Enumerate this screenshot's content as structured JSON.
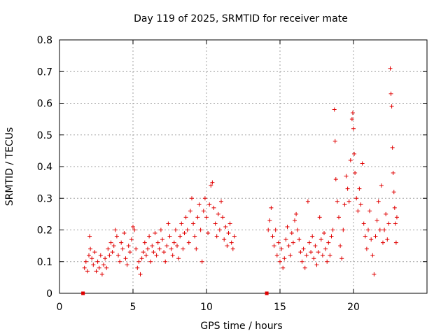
{
  "chart_data": {
    "type": "scatter",
    "title": "Day 119 of 2025, SRMTID for receiver mate",
    "xlabel": "GPS time / hours",
    "ylabel": "SRMTID / TECUs",
    "xlim": [
      0,
      25
    ],
    "ylim": [
      0,
      0.8
    ],
    "xticks": [
      "0",
      "5",
      "10",
      "15",
      "20"
    ],
    "yticks": [
      "0",
      "0.1",
      "0.2",
      "0.3",
      "0.4",
      "0.5",
      "0.6",
      "0.7",
      "0.8"
    ],
    "grid": true,
    "marker": "+",
    "color": "#e00000",
    "zero_markers": [
      {
        "x": 1.6,
        "y": 0
      },
      {
        "x": 14.1,
        "y": 0
      }
    ],
    "series": [
      {
        "name": "SRMTID",
        "points": [
          [
            1.7,
            0.08
          ],
          [
            1.8,
            0.1
          ],
          [
            1.9,
            0.07
          ],
          [
            2.0,
            0.12
          ],
          [
            2.1,
            0.14
          ],
          [
            2.05,
            0.18
          ],
          [
            2.2,
            0.11
          ],
          [
            2.3,
            0.09
          ],
          [
            2.4,
            0.13
          ],
          [
            2.5,
            0.07
          ],
          [
            2.6,
            0.1
          ],
          [
            2.7,
            0.08
          ],
          [
            2.8,
            0.12
          ],
          [
            2.9,
            0.06
          ],
          [
            3.0,
            0.09
          ],
          [
            3.1,
            0.11
          ],
          [
            3.2,
            0.08
          ],
          [
            3.3,
            0.14
          ],
          [
            3.4,
            0.12
          ],
          [
            3.5,
            0.16
          ],
          [
            3.6,
            0.13
          ],
          [
            3.7,
            0.15
          ],
          [
            3.8,
            0.2
          ],
          [
            3.9,
            0.18
          ],
          [
            4.0,
            0.12
          ],
          [
            4.1,
            0.1
          ],
          [
            4.2,
            0.16
          ],
          [
            4.3,
            0.14
          ],
          [
            4.4,
            0.19
          ],
          [
            4.5,
            0.11
          ],
          [
            4.6,
            0.09
          ],
          [
            4.7,
            0.15
          ],
          [
            4.8,
            0.13
          ],
          [
            4.9,
            0.17
          ],
          [
            5.0,
            0.21
          ],
          [
            5.1,
            0.2
          ],
          [
            5.2,
            0.14
          ],
          [
            5.3,
            0.08
          ],
          [
            5.4,
            0.1
          ],
          [
            5.5,
            0.06
          ],
          [
            5.6,
            0.11
          ],
          [
            5.7,
            0.13
          ],
          [
            5.8,
            0.16
          ],
          [
            5.9,
            0.12
          ],
          [
            6.0,
            0.14
          ],
          [
            6.1,
            0.18
          ],
          [
            6.2,
            0.1
          ],
          [
            6.3,
            0.15
          ],
          [
            6.4,
            0.13
          ],
          [
            6.5,
            0.19
          ],
          [
            6.6,
            0.12
          ],
          [
            6.7,
            0.16
          ],
          [
            6.8,
            0.14
          ],
          [
            6.9,
            0.2
          ],
          [
            7.0,
            0.17
          ],
          [
            7.1,
            0.13
          ],
          [
            7.2,
            0.1
          ],
          [
            7.3,
            0.15
          ],
          [
            7.4,
            0.22
          ],
          [
            7.5,
            0.18
          ],
          [
            7.6,
            0.14
          ],
          [
            7.7,
            0.12
          ],
          [
            7.8,
            0.16
          ],
          [
            7.9,
            0.2
          ],
          [
            8.0,
            0.15
          ],
          [
            8.1,
            0.11
          ],
          [
            8.2,
            0.18
          ],
          [
            8.3,
            0.22
          ],
          [
            8.4,
            0.14
          ],
          [
            8.5,
            0.19
          ],
          [
            8.6,
            0.24
          ],
          [
            8.7,
            0.2
          ],
          [
            8.8,
            0.16
          ],
          [
            8.9,
            0.26
          ],
          [
            9.0,
            0.3
          ],
          [
            9.1,
            0.22
          ],
          [
            9.2,
            0.18
          ],
          [
            9.3,
            0.14
          ],
          [
            9.4,
            0.24
          ],
          [
            9.5,
            0.28
          ],
          [
            9.6,
            0.2
          ],
          [
            9.7,
            0.1
          ],
          [
            9.8,
            0.26
          ],
          [
            9.9,
            0.3
          ],
          [
            10.0,
            0.24
          ],
          [
            10.1,
            0.19
          ],
          [
            10.2,
            0.28
          ],
          [
            10.3,
            0.34
          ],
          [
            10.4,
            0.35
          ],
          [
            10.5,
            0.27
          ],
          [
            10.6,
            0.22
          ],
          [
            10.7,
            0.18
          ],
          [
            10.8,
            0.25
          ],
          [
            10.9,
            0.2
          ],
          [
            11.0,
            0.29
          ],
          [
            11.1,
            0.24
          ],
          [
            11.2,
            0.17
          ],
          [
            11.3,
            0.21
          ],
          [
            11.4,
            0.15
          ],
          [
            11.5,
            0.19
          ],
          [
            11.6,
            0.22
          ],
          [
            11.7,
            0.16
          ],
          [
            11.8,
            0.14
          ],
          [
            11.9,
            0.18
          ],
          [
            14.2,
            0.2
          ],
          [
            14.3,
            0.23
          ],
          [
            14.4,
            0.27
          ],
          [
            14.5,
            0.18
          ],
          [
            14.6,
            0.15
          ],
          [
            14.7,
            0.2
          ],
          [
            14.8,
            0.12
          ],
          [
            14.9,
            0.16
          ],
          [
            15.0,
            0.1
          ],
          [
            15.1,
            0.14
          ],
          [
            15.2,
            0.08
          ],
          [
            15.3,
            0.11
          ],
          [
            15.4,
            0.17
          ],
          [
            15.5,
            0.21
          ],
          [
            15.6,
            0.15
          ],
          [
            15.7,
            0.12
          ],
          [
            15.8,
            0.19
          ],
          [
            15.9,
            0.16
          ],
          [
            16.0,
            0.23
          ],
          [
            16.1,
            0.25
          ],
          [
            16.2,
            0.2
          ],
          [
            16.3,
            0.17
          ],
          [
            16.4,
            0.13
          ],
          [
            16.5,
            0.1
          ],
          [
            16.6,
            0.14
          ],
          [
            16.7,
            0.08
          ],
          [
            16.8,
            0.12
          ],
          [
            16.9,
            0.29
          ],
          [
            17.0,
            0.16
          ],
          [
            17.1,
            0.13
          ],
          [
            17.2,
            0.18
          ],
          [
            17.3,
            0.11
          ],
          [
            17.4,
            0.15
          ],
          [
            17.5,
            0.09
          ],
          [
            17.6,
            0.13
          ],
          [
            17.7,
            0.24
          ],
          [
            17.8,
            0.17
          ],
          [
            17.9,
            0.12
          ],
          [
            18.0,
            0.19
          ],
          [
            18.1,
            0.14
          ],
          [
            18.2,
            0.1
          ],
          [
            18.3,
            0.16
          ],
          [
            18.4,
            0.12
          ],
          [
            18.5,
            0.18
          ],
          [
            18.6,
            0.2
          ],
          [
            18.7,
            0.58
          ],
          [
            18.75,
            0.48
          ],
          [
            18.8,
            0.36
          ],
          [
            18.9,
            0.29
          ],
          [
            19.0,
            0.24
          ],
          [
            19.1,
            0.15
          ],
          [
            19.2,
            0.11
          ],
          [
            19.3,
            0.2
          ],
          [
            19.4,
            0.28
          ],
          [
            19.5,
            0.37
          ],
          [
            19.6,
            0.33
          ],
          [
            19.7,
            0.29
          ],
          [
            19.8,
            0.42
          ],
          [
            19.9,
            0.55
          ],
          [
            19.95,
            0.57
          ],
          [
            20.0,
            0.52
          ],
          [
            20.05,
            0.44
          ],
          [
            20.1,
            0.38
          ],
          [
            20.2,
            0.3
          ],
          [
            20.3,
            0.26
          ],
          [
            20.4,
            0.33
          ],
          [
            20.5,
            0.28
          ],
          [
            20.6,
            0.41
          ],
          [
            20.7,
            0.22
          ],
          [
            20.8,
            0.18
          ],
          [
            20.9,
            0.14
          ],
          [
            21.0,
            0.2
          ],
          [
            21.1,
            0.26
          ],
          [
            21.2,
            0.17
          ],
          [
            21.3,
            0.12
          ],
          [
            21.4,
            0.06
          ],
          [
            21.5,
            0.18
          ],
          [
            21.6,
            0.23
          ],
          [
            21.7,
            0.29
          ],
          [
            21.8,
            0.2
          ],
          [
            21.9,
            0.34
          ],
          [
            22.0,
            0.16
          ],
          [
            22.1,
            0.2
          ],
          [
            22.2,
            0.25
          ],
          [
            22.3,
            0.17
          ],
          [
            22.4,
            0.22
          ],
          [
            22.5,
            0.71
          ],
          [
            22.55,
            0.63
          ],
          [
            22.6,
            0.59
          ],
          [
            22.65,
            0.46
          ],
          [
            22.7,
            0.38
          ],
          [
            22.75,
            0.32
          ],
          [
            22.8,
            0.27
          ],
          [
            22.85,
            0.22
          ],
          [
            22.9,
            0.16
          ],
          [
            22.95,
            0.24
          ]
        ]
      }
    ]
  }
}
